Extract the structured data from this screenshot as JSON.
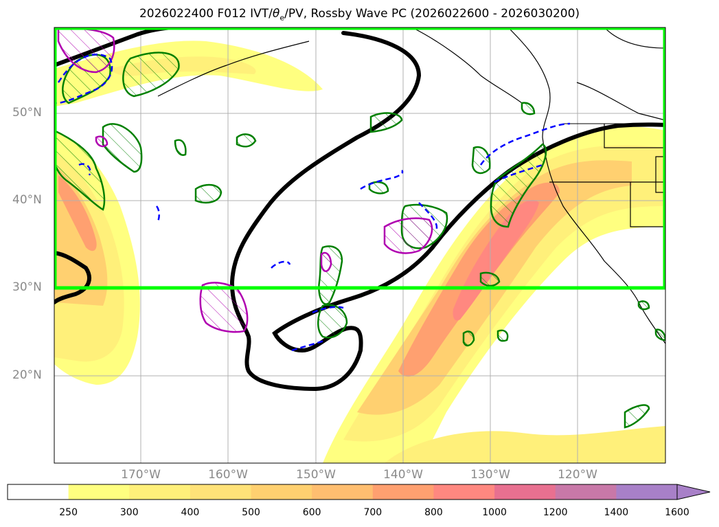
{
  "title": "2026022400 F012 IVT/θe/PV, Rossby Wave PC (2026022600 - 2026030200)",
  "title_parts": {
    "main": "2026022400 F012 IVT/",
    "theta": "θ",
    "theta_sub": "e",
    "rest": "/PV, Rossby Wave PC (2026022600 - 2026030200)"
  },
  "map": {
    "projection": "Lambert-like lat/lon",
    "lat_labels": [
      "50°N",
      "40°N",
      "30°N",
      "20°N"
    ],
    "lon_labels": [
      "170°W",
      "160°W",
      "150°W",
      "140°W",
      "130°W",
      "120°W"
    ],
    "highlight_box_color": "#00ff00",
    "pv_contour_color": "#000000",
    "positive_anomaly_color": "#008000",
    "negative_anomaly_color": "#0000ff",
    "theta_contour_color": "#b000b0"
  },
  "colorbar": {
    "ticks": [
      "250",
      "300",
      "400",
      "500",
      "600",
      "700",
      "800",
      "1000",
      "1200",
      "1400",
      "1600"
    ],
    "colors": [
      "#ffffff",
      "#ffff80",
      "#fff07a",
      "#ffe278",
      "#ffd070",
      "#ffbe70",
      "#ffa070",
      "#ff8880",
      "#e87090",
      "#c878a8",
      "#a880c8"
    ],
    "extend": "max"
  }
}
